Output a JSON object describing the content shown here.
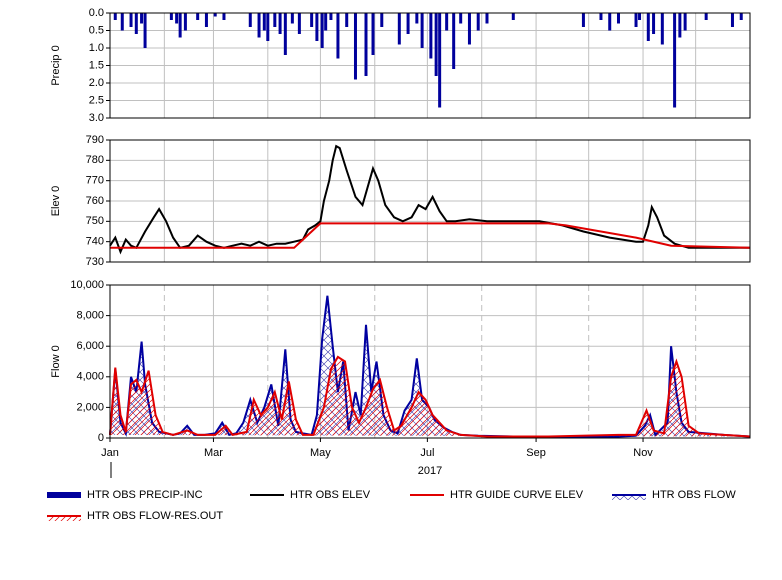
{
  "chart_data": [
    {
      "type": "bar",
      "ylabel": "Precip 0",
      "y_inverted": true,
      "xlim": [
        0,
        365
      ],
      "ylim": [
        0,
        3
      ],
      "yticks": [
        {
          "value": 0,
          "label": "0.0"
        },
        0.5,
        {
          "value": 1,
          "label": "1.0"
        },
        1.5,
        {
          "value": 2,
          "label": "2.0"
        },
        2.5,
        {
          "value": 3,
          "label": "3.0"
        }
      ],
      "series": [
        {
          "name": "HTR OBS PRECIP-INC",
          "color": "#00009c",
          "x": [
            3,
            7,
            12,
            15,
            18,
            20,
            35,
            38,
            40,
            43,
            50,
            55,
            60,
            65,
            80,
            85,
            88,
            90,
            94,
            97,
            100,
            104,
            108,
            115,
            118,
            121,
            123,
            126,
            130,
            135,
            140,
            146,
            150,
            155,
            165,
            170,
            175,
            178,
            183,
            186,
            188,
            192,
            196,
            200,
            205,
            210,
            215,
            230,
            270,
            280,
            285,
            290,
            300,
            302,
            307,
            310,
            315,
            322,
            325,
            328,
            340,
            355,
            360
          ],
          "values": [
            0.2,
            0.5,
            0.4,
            0.6,
            0.3,
            1.0,
            0.2,
            0.3,
            0.7,
            0.5,
            0.2,
            0.4,
            0.1,
            0.2,
            0.4,
            0.7,
            0.5,
            0.8,
            0.4,
            0.6,
            1.2,
            0.3,
            0.6,
            0.4,
            0.8,
            1.0,
            0.5,
            0.2,
            1.3,
            0.4,
            1.9,
            1.8,
            1.2,
            0.4,
            0.9,
            0.6,
            0.3,
            1.0,
            1.3,
            1.8,
            2.7,
            0.5,
            1.6,
            0.3,
            0.9,
            0.5,
            0.3,
            0.2,
            0.4,
            0.2,
            0.5,
            0.3,
            0.4,
            0.2,
            0.8,
            0.6,
            0.9,
            2.7,
            0.7,
            0.5,
            0.2,
            0.4,
            0.2
          ]
        }
      ]
    },
    {
      "type": "line",
      "ylabel": "Elev 0",
      "xlim": [
        0,
        365
      ],
      "ylim": [
        730,
        790
      ],
      "yticks": [
        730,
        740,
        750,
        760,
        770,
        780,
        790
      ],
      "series": [
        {
          "name": "HTR OBS ELEV",
          "color": "#000000",
          "x": [
            0,
            3,
            6,
            9,
            12,
            15,
            20,
            25,
            28,
            32,
            36,
            40,
            45,
            50,
            55,
            60,
            65,
            70,
            75,
            80,
            85,
            90,
            95,
            100,
            105,
            110,
            113,
            117,
            120,
            122,
            125,
            127,
            129,
            131,
            135,
            140,
            144,
            148,
            150,
            153,
            157,
            162,
            167,
            172,
            176,
            180,
            184,
            188,
            192,
            197,
            205,
            215,
            230,
            245,
            258,
            270,
            285,
            300,
            304,
            307,
            309,
            312,
            316,
            322,
            330,
            340,
            350,
            365
          ],
          "values": [
            738,
            742,
            735,
            741,
            738,
            737,
            745,
            752,
            756,
            750,
            742,
            737,
            738,
            743,
            740,
            738,
            737,
            738,
            739,
            738,
            740,
            738,
            739,
            739,
            740,
            741,
            746,
            748,
            750,
            760,
            770,
            780,
            787,
            786,
            775,
            762,
            758,
            770,
            776,
            770,
            758,
            752,
            750,
            752,
            758,
            756,
            762,
            755,
            750,
            750,
            751,
            750,
            750,
            750,
            748,
            745,
            742,
            740,
            740,
            748,
            757,
            752,
            743,
            739,
            737,
            737,
            737,
            737
          ]
        },
        {
          "name": "HTR GUIDE CURVE ELEV",
          "color": "#e00000",
          "x": [
            0,
            90,
            105,
            110,
            120,
            250,
            260,
            300,
            320,
            365
          ],
          "values": [
            737,
            737,
            737,
            741,
            749,
            749,
            748,
            742,
            738,
            737
          ]
        }
      ]
    },
    {
      "type": "area",
      "ylabel": "Flow 0",
      "xlabel": "2017",
      "xlim": [
        0,
        365
      ],
      "ylim": [
        0,
        10000
      ],
      "yticks": [
        0,
        {
          "value": 2000,
          "label": "2,000"
        },
        {
          "value": 4000,
          "label": "4,000"
        },
        {
          "value": 6000,
          "label": "6,000"
        },
        {
          "value": 8000,
          "label": "8,000"
        },
        {
          "value": 10000,
          "label": "10,000"
        }
      ],
      "xticks": [
        {
          "value": 0,
          "label": "Jan"
        },
        {
          "value": 59,
          "label": "Mar"
        },
        {
          "value": 120,
          "label": "May"
        },
        {
          "value": 181,
          "label": "Jul"
        },
        {
          "value": 243,
          "label": "Sep"
        },
        {
          "value": 304,
          "label": "Nov"
        }
      ],
      "xminorticks": [
        31,
        90,
        151,
        212,
        273,
        334
      ],
      "series": [
        {
          "name": "HTR OBS FLOW",
          "color": "#0000a0",
          "x": [
            0,
            3,
            6,
            9,
            12,
            15,
            18,
            20,
            24,
            28,
            32,
            36,
            40,
            44,
            48,
            54,
            60,
            64,
            68,
            72,
            76,
            80,
            84,
            88,
            92,
            96,
            100,
            103,
            106,
            110,
            115,
            118,
            121,
            124,
            127,
            130,
            133,
            136,
            140,
            143,
            146,
            149,
            152,
            156,
            160,
            164,
            168,
            172,
            175,
            178,
            182,
            185,
            190,
            195,
            200,
            210,
            230,
            250,
            270,
            290,
            300,
            305,
            308,
            311,
            318,
            320,
            323,
            326,
            330,
            340,
            350,
            365
          ],
          "values": [
            200,
            4500,
            1000,
            300,
            4000,
            3000,
            6300,
            3500,
            1000,
            400,
            300,
            200,
            300,
            800,
            200,
            200,
            300,
            1000,
            200,
            300,
            1000,
            2500,
            1000,
            2000,
            3500,
            800,
            5800,
            1200,
            400,
            300,
            200,
            1500,
            6500,
            9300,
            6000,
            3000,
            5000,
            500,
            3000,
            1500,
            7400,
            3000,
            5000,
            1500,
            500,
            300,
            1800,
            2500,
            5200,
            2500,
            2000,
            1200,
            700,
            400,
            200,
            150,
            100,
            100,
            100,
            100,
            150,
            800,
            1500,
            200,
            1000,
            6000,
            3000,
            1000,
            400,
            300,
            200,
            100
          ]
        },
        {
          "name": "HTR OBS FLOW-RES.OUT",
          "color": "#e00000",
          "x": [
            0,
            3,
            6,
            9,
            12,
            15,
            18,
            22,
            26,
            30,
            36,
            44,
            50,
            60,
            66,
            70,
            78,
            82,
            86,
            90,
            94,
            98,
            102,
            106,
            110,
            116,
            122,
            126,
            130,
            134,
            138,
            142,
            146,
            150,
            154,
            158,
            162,
            166,
            172,
            176,
            180,
            184,
            188,
            192,
            200,
            215,
            250,
            290,
            300,
            306,
            310,
            316,
            320,
            323,
            326,
            330,
            336,
            350,
            365
          ],
          "values": [
            200,
            4600,
            1500,
            400,
            3500,
            3800,
            3000,
            4400,
            1500,
            400,
            200,
            500,
            200,
            200,
            800,
            200,
            400,
            2500,
            1500,
            2000,
            3000,
            1200,
            3700,
            1200,
            200,
            200,
            2000,
            4500,
            5300,
            5000,
            2000,
            1000,
            2000,
            3200,
            3800,
            2000,
            500,
            800,
            2000,
            3000,
            2500,
            1500,
            1000,
            500,
            200,
            100,
            100,
            200,
            200,
            1800,
            500,
            300,
            4000,
            5000,
            4000,
            800,
            300,
            200,
            100
          ]
        }
      ]
    }
  ]
}
